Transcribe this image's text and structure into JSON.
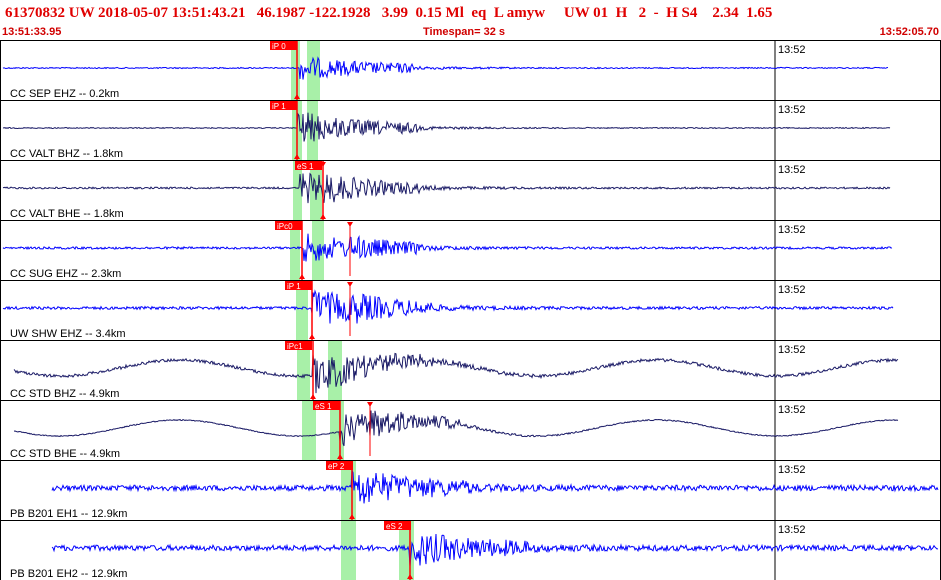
{
  "header": {
    "title": "61370832 UW 2018-05-07 13:51:43.21   46.1987 -122.1928   3.99  0.15 Ml  eq  L amyw     UW 01  H   2  -  H S4    2.34  1.65",
    "start_time": "13:51:33.95",
    "timespan": "Timespan=  32 s",
    "end_time": "13:52:05.70"
  },
  "colors": {
    "trace_blue": "#0000ff",
    "trace_navy": "#1a1a66",
    "pick_red": "#ff0000",
    "pick_window_green": "#a8f0a8",
    "border": "#000000",
    "header_text": "#d00000"
  },
  "tick_label": "13:52",
  "channels": [
    {
      "label": "CC SEP EHZ -- 0.2km",
      "pick_labels": [
        "iP 0"
      ],
      "color": "blue",
      "amp": 0.35
    },
    {
      "label": "CC VALT BHZ -- 1.8km",
      "pick_labels": [
        "iP 1"
      ],
      "color": "navy",
      "amp": 0.55
    },
    {
      "label": "CC VALT BHE -- 1.8km",
      "pick_labels": [
        "eS 1"
      ],
      "color": "navy",
      "amp": 0.5
    },
    {
      "label": "CC SUG EHZ -- 2.3km",
      "pick_labels": [
        "iPc0"
      ],
      "color": "blue",
      "amp": 0.45
    },
    {
      "label": "UW SHW EHZ -- 3.4km",
      "pick_labels": [
        "iP 1"
      ],
      "color": "blue",
      "amp": 0.6
    },
    {
      "label": "CC STD BHZ -- 4.9km",
      "pick_labels": [
        "iPc1"
      ],
      "color": "navy",
      "amp": 0.65
    },
    {
      "label": "CC STD BHE -- 4.9km",
      "pick_labels": [
        "eS 1"
      ],
      "color": "navy",
      "amp": 0.55
    },
    {
      "label": "PB B201 EH1 -- 12.9km",
      "pick_labels": [
        "eP 2"
      ],
      "color": "blue",
      "amp": 0.6
    },
    {
      "label": "PB B201 EH2 -- 12.9km",
      "pick_labels": [
        "eS 2"
      ],
      "color": "blue",
      "amp": 0.55
    }
  ]
}
